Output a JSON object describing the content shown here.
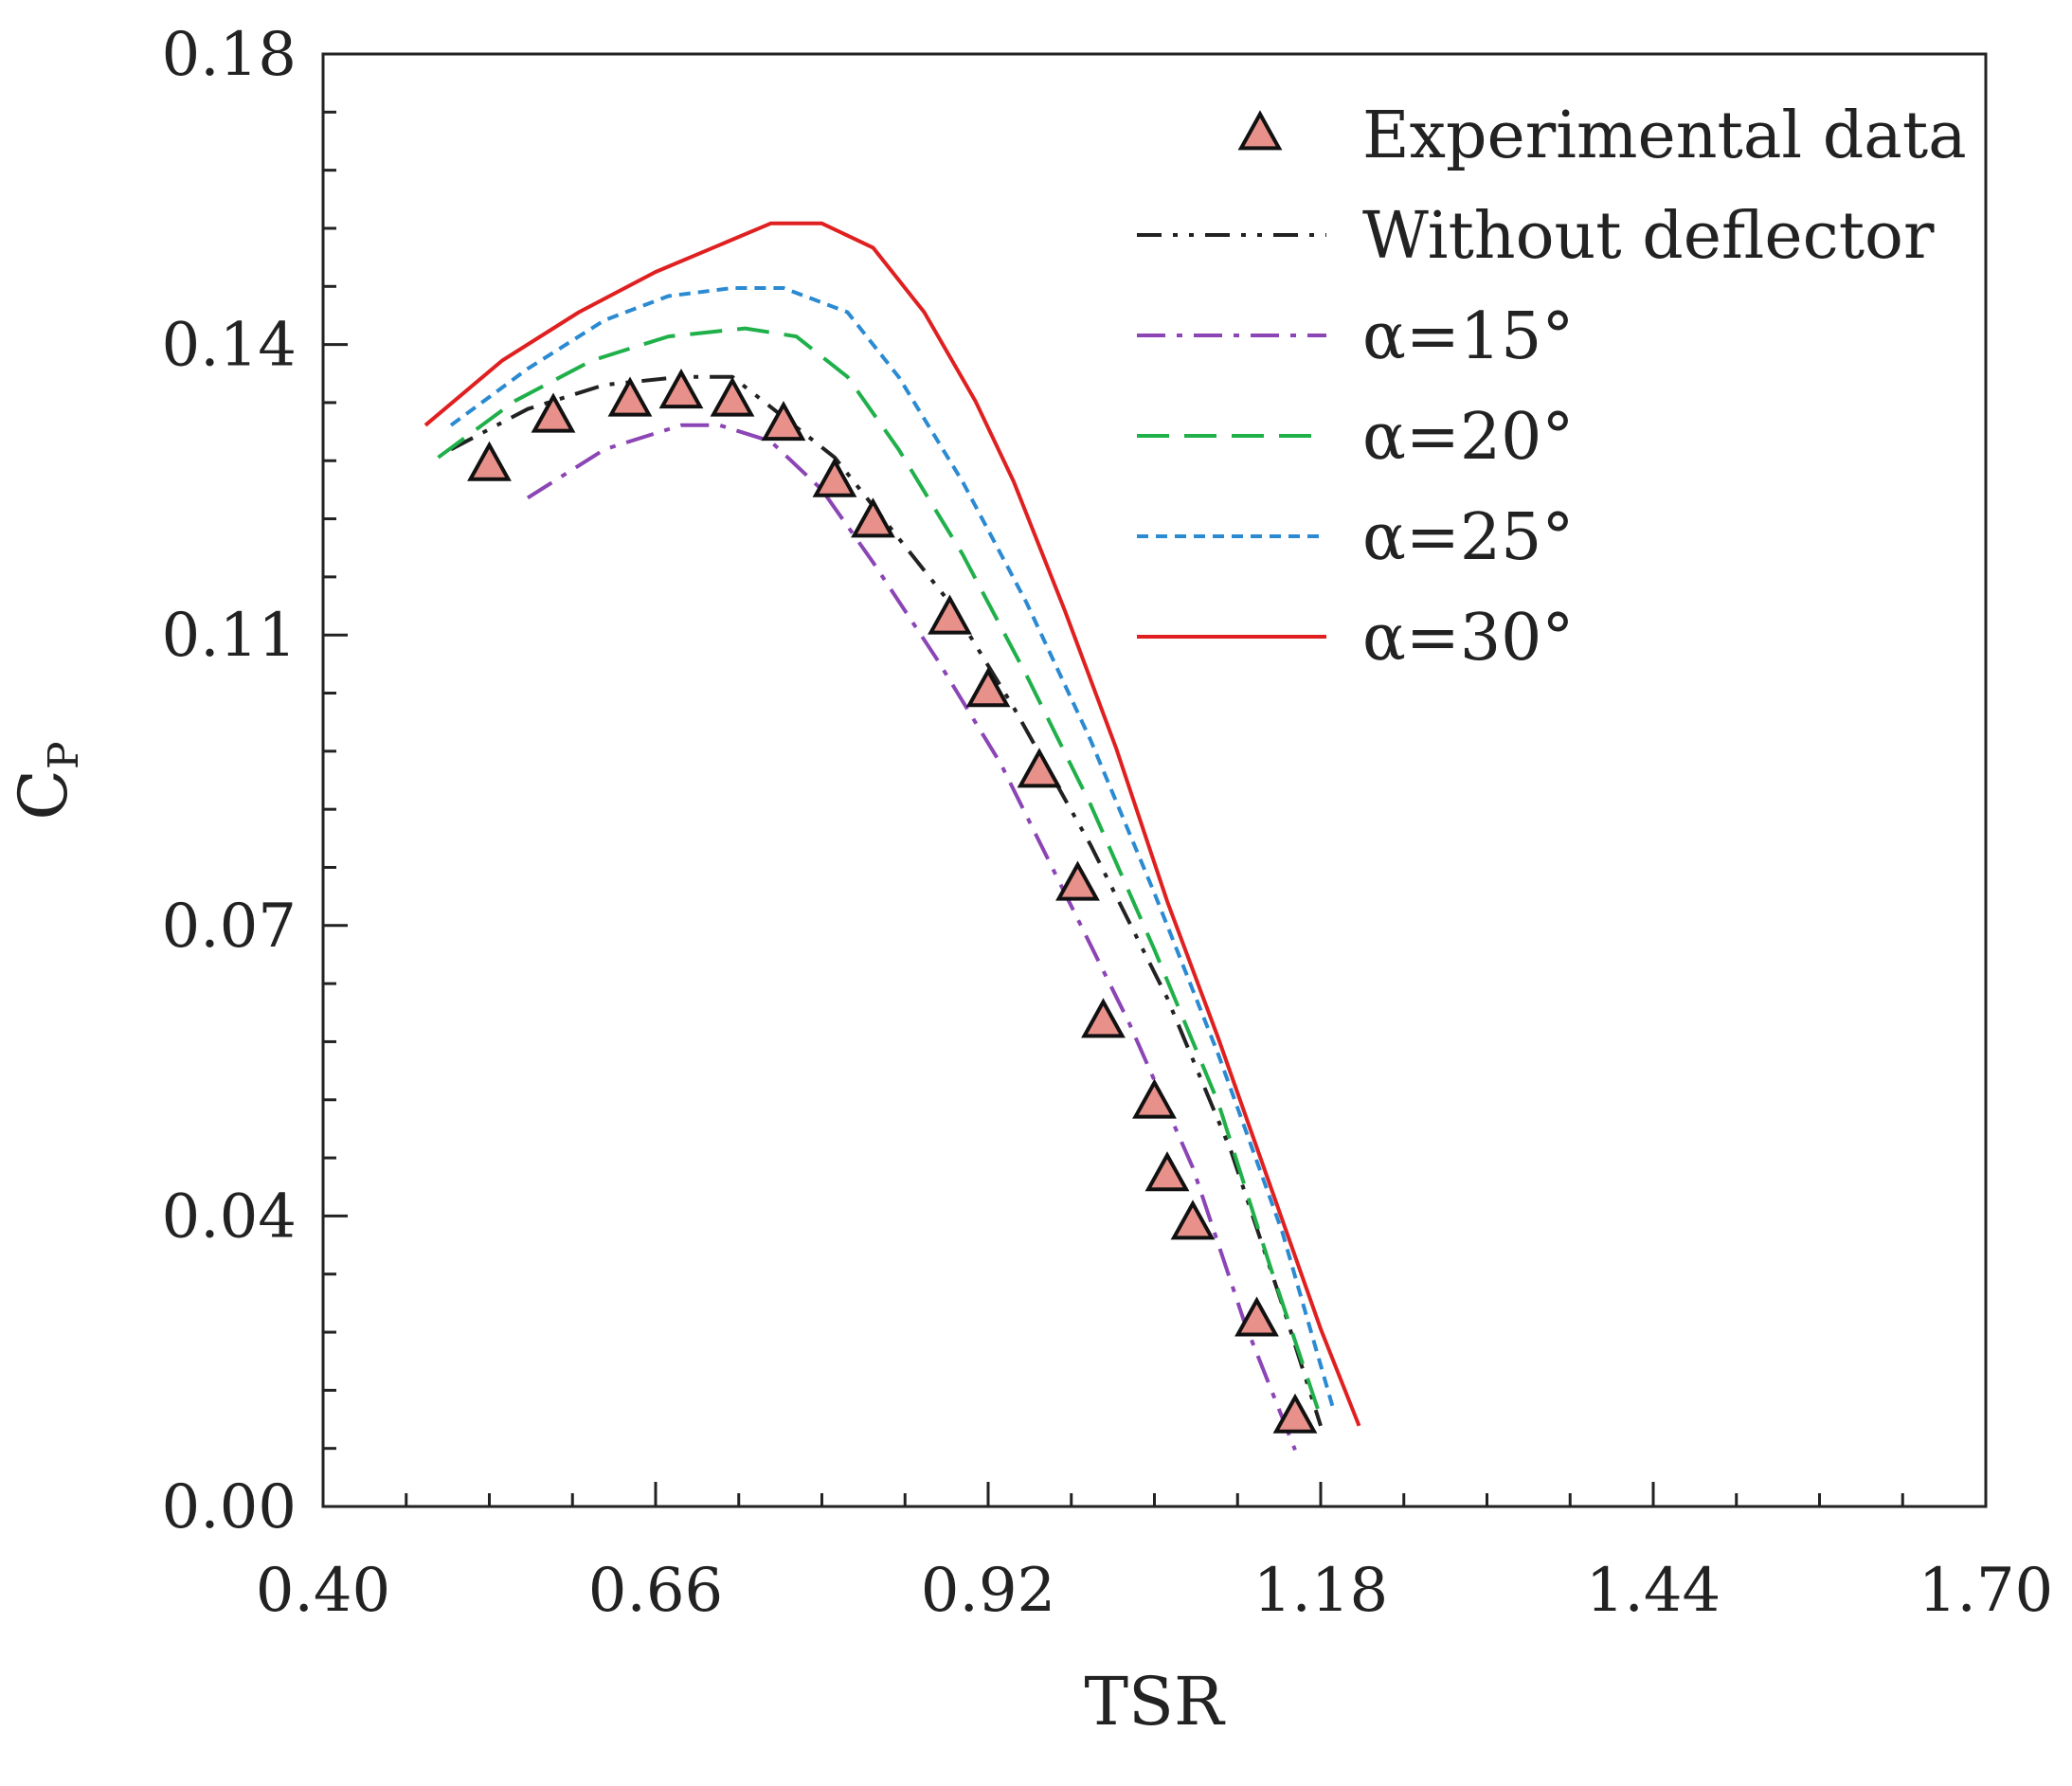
{
  "chart_data": {
    "type": "line",
    "title": "",
    "xlabel": "TSR",
    "ylabel_main": "C",
    "ylabel_sub": "P",
    "xlim": [
      0.4,
      1.7
    ],
    "ylim": [
      0.0,
      0.18
    ],
    "x_ticks": [
      0.4,
      0.66,
      0.92,
      1.18,
      1.44,
      1.7
    ],
    "x_tick_labels": [
      "0.40",
      "0.66",
      "0.92",
      "1.18",
      "1.44",
      "1.70"
    ],
    "y_ticks": [
      0.0,
      0.04,
      0.07,
      0.11,
      0.14,
      0.18
    ],
    "y_tick_labels": [
      "0.00",
      "0.04",
      "0.07",
      "0.11",
      "0.14",
      "0.18"
    ],
    "grid": false,
    "legend_position": "top-right",
    "series": [
      {
        "name": "Experimental data",
        "kind": "marker",
        "color": "#e8908a",
        "x": [
          0.53,
          0.58,
          0.64,
          0.68,
          0.72,
          0.76,
          0.8,
          0.83,
          0.89,
          0.92,
          0.96,
          0.99,
          1.01,
          1.05,
          1.06,
          1.08,
          1.13,
          1.16
        ],
        "y": [
          0.129,
          0.135,
          0.137,
          0.138,
          0.137,
          0.134,
          0.127,
          0.122,
          0.11,
          0.101,
          0.091,
          0.077,
          0.06,
          0.05,
          0.041,
          0.035,
          0.023,
          0.011
        ]
      },
      {
        "name": "Without deflector",
        "kind": "line",
        "color": "#222222",
        "dash": "26,12,5,12,5,12",
        "x": [
          0.5,
          0.56,
          0.62,
          0.68,
          0.72,
          0.76,
          0.8,
          0.84,
          0.89,
          0.94,
          1.0,
          1.06,
          1.11,
          1.15,
          1.18
        ],
        "y": [
          0.131,
          0.136,
          0.139,
          0.14,
          0.14,
          0.135,
          0.13,
          0.122,
          0.112,
          0.099,
          0.082,
          0.063,
          0.044,
          0.025,
          0.01
        ]
      },
      {
        "name": "α=15°",
        "kind": "line",
        "color": "#8b45b5",
        "dash": "30,12,6,12",
        "x": [
          0.56,
          0.62,
          0.68,
          0.71,
          0.75,
          0.79,
          0.83,
          0.88,
          0.93,
          0.98,
          1.03,
          1.08,
          1.12,
          1.16
        ],
        "y": [
          0.125,
          0.131,
          0.134,
          0.134,
          0.132,
          0.126,
          0.117,
          0.105,
          0.092,
          0.076,
          0.06,
          0.042,
          0.023,
          0.007
        ]
      },
      {
        "name": "α=20°",
        "kind": "line",
        "color": "#20b04a",
        "dash": "34,16",
        "x": [
          0.49,
          0.55,
          0.61,
          0.67,
          0.73,
          0.77,
          0.81,
          0.85,
          0.9,
          0.95,
          1.0,
          1.05,
          1.1,
          1.14,
          1.18
        ],
        "y": [
          0.13,
          0.137,
          0.142,
          0.145,
          0.146,
          0.145,
          0.14,
          0.131,
          0.118,
          0.103,
          0.087,
          0.069,
          0.05,
          0.03,
          0.011
        ]
      },
      {
        "name": "α=25°",
        "kind": "line",
        "color": "#2a8ad2",
        "dash": "12,8",
        "x": [
          0.5,
          0.56,
          0.62,
          0.67,
          0.72,
          0.76,
          0.81,
          0.85,
          0.9,
          0.95,
          1.0,
          1.05,
          1.1,
          1.15,
          1.19
        ],
        "y": [
          0.134,
          0.141,
          0.147,
          0.15,
          0.151,
          0.151,
          0.148,
          0.14,
          0.127,
          0.112,
          0.095,
          0.076,
          0.056,
          0.034,
          0.012
        ]
      },
      {
        "name": "α=30°",
        "kind": "line",
        "color": "#e02020",
        "dash": "",
        "x": [
          0.48,
          0.54,
          0.6,
          0.66,
          0.72,
          0.75,
          0.79,
          0.83,
          0.87,
          0.91,
          0.94,
          0.98,
          1.02,
          1.06,
          1.1,
          1.14,
          1.18,
          1.21
        ],
        "y": [
          0.134,
          0.142,
          0.148,
          0.153,
          0.157,
          0.159,
          0.159,
          0.156,
          0.148,
          0.137,
          0.127,
          0.111,
          0.094,
          0.075,
          0.058,
          0.04,
          0.022,
          0.01
        ]
      }
    ]
  }
}
